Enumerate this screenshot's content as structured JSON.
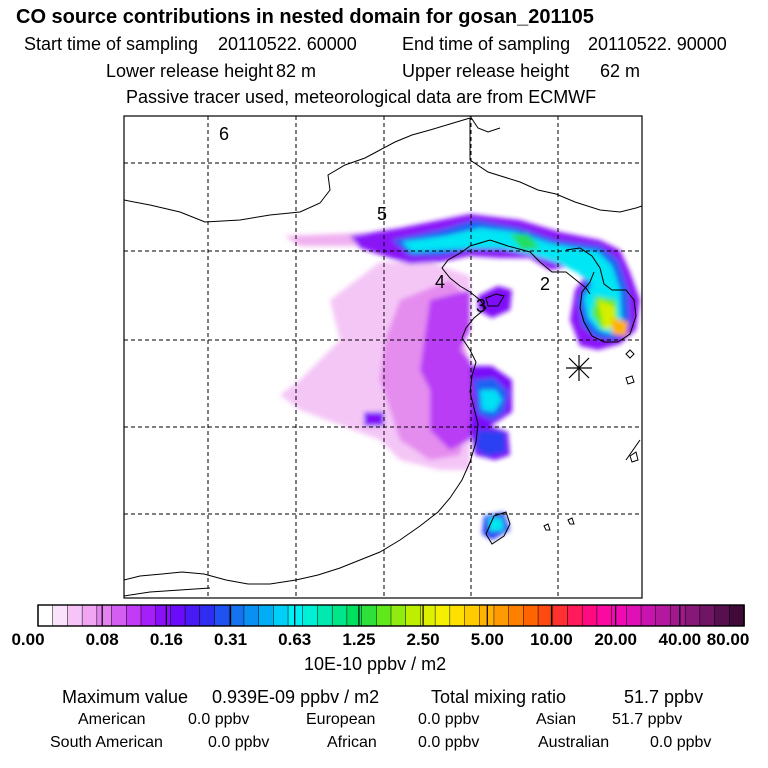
{
  "header": {
    "title": "CO  source contributions in nested domain for gosan_201105",
    "start_label": "Start time of sampling",
    "start_value": "20110522. 60000",
    "end_label": "End time of sampling",
    "end_value": "20110522. 90000",
    "lower_label": "Lower release height",
    "lower_value": "82 m",
    "upper_label": "Upper release height",
    "upper_value": "62 m",
    "note": "Passive tracer used, meteorological data are from ECMWF"
  },
  "map": {
    "region_labels": [
      "6",
      "5",
      "4",
      "3",
      "2"
    ],
    "receptor_marker": "asterisk-icon"
  },
  "chart_data": {
    "type": "heatmap",
    "colorbar": {
      "tick_labels": [
        "0.00",
        "0.08",
        "0.16",
        "0.31",
        "0.63",
        "1.25",
        "2.50",
        "5.00",
        "10.00",
        "20.00",
        "40.00",
        "80.00"
      ],
      "colors": [
        "#ffffff",
        "#fbe2fb",
        "#f6c4f6",
        "#f0a6f2",
        "#e482f0",
        "#d45ef2",
        "#c23cf6",
        "#a51ff9",
        "#8a10fa",
        "#6a0cfa",
        "#4a1af5",
        "#2e2df0",
        "#1f52f0",
        "#1572f0",
        "#0a90f2",
        "#00aef5",
        "#00d0f7",
        "#00f0f5",
        "#00f0d6",
        "#00eab0",
        "#00e688",
        "#00e060",
        "#30e03a",
        "#60e81c",
        "#90ec10",
        "#bcf000",
        "#dcf000",
        "#f4f000",
        "#ffe000",
        "#ffcc00",
        "#ffb200",
        "#ff9a00",
        "#ff8000",
        "#ff6400",
        "#ff4a10",
        "#ff3030",
        "#ff1a5a",
        "#ff0a80",
        "#fa0aa0",
        "#f00ab4",
        "#de10b6",
        "#c814ae",
        "#b4189f",
        "#a01a8c",
        "#881878",
        "#701464",
        "#580f50",
        "#400a38"
      ],
      "unit": "10E-10 ppbv / m2"
    },
    "stats": {
      "max_label": "Maximum value",
      "max_value": "0.939E-09 ppbv / m2",
      "total_label": "Total mixing ratio",
      "total_value": "51.7 ppbv",
      "regions": [
        {
          "name": "American",
          "value": "0.0 ppbv"
        },
        {
          "name": "European",
          "value": "0.0 ppbv"
        },
        {
          "name": "Asian",
          "value": "51.7 ppbv"
        },
        {
          "name": "South American",
          "value": "0.0 ppbv"
        },
        {
          "name": "African",
          "value": "0.0 ppbv"
        },
        {
          "name": "Australian",
          "value": "0.0 ppbv"
        }
      ]
    }
  }
}
